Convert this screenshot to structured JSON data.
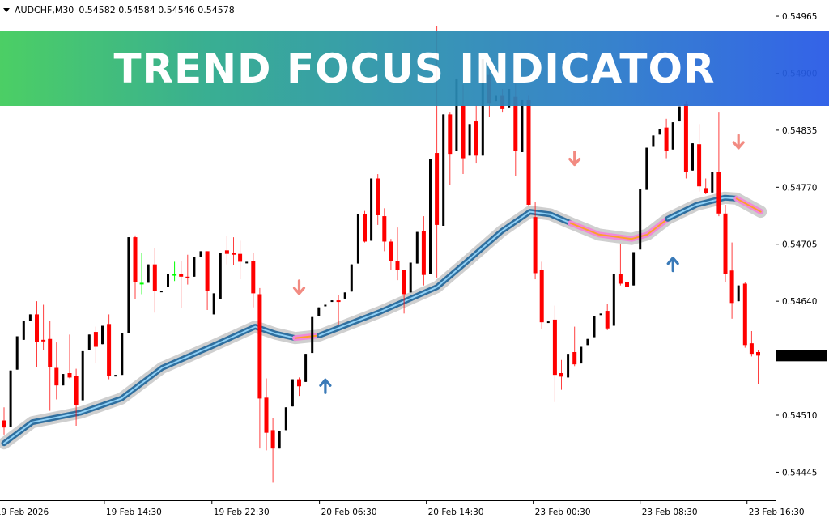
{
  "header": {
    "symbol": "AUDCHF,M30",
    "ohlc": "0.54582 0.54584 0.54546 0.54578"
  },
  "banner": {
    "title": "TREND FOCUS INDICATOR"
  },
  "chart_data": {
    "type": "candlestick",
    "title": "",
    "grid": false,
    "colors": {
      "bull": "#000000",
      "bear": "#ff0000",
      "doji": "#00ff00",
      "ma_up": "#3b8fd0",
      "ma_down": "#f08ad8",
      "ma_down_core": "#ffa500",
      "ma_halo": "#cfcfcf",
      "arrow_up": "#3a7ab8",
      "arrow_down": "#f28b82",
      "badge_bg": "#000000"
    },
    "y_ticks": [
      "0.54965",
      "0.54900",
      "0.54835",
      "0.54770",
      "0.54705",
      "0.54640",
      "0.54510",
      "0.54445"
    ],
    "ylim": [
      0.54425,
      0.54985
    ],
    "current_price": "0.54578",
    "x_ticks": [
      {
        "bar": -1.5,
        "label": "19 Feb 2026"
      },
      {
        "bar": 15.3,
        "label": "19 Feb 14:30"
      },
      {
        "bar": 31.7,
        "label": "19 Feb 22:30"
      },
      {
        "bar": 48.1,
        "label": "20 Feb 06:30"
      },
      {
        "bar": 64.4,
        "label": "20 Feb 14:30"
      },
      {
        "bar": 80.7,
        "label": "23 Feb 00:30"
      },
      {
        "bar": 97.0,
        "label": "23 Feb 08:30"
      },
      {
        "bar": 113.3,
        "label": "23 Feb 16:30"
      }
    ],
    "candles": [
      [
        0.54504,
        0.54519,
        0.54488,
        0.54496
      ],
      [
        0.54497,
        0.54561,
        0.54497,
        0.54561
      ],
      [
        0.54562,
        0.546,
        0.54562,
        0.546
      ],
      [
        0.54596,
        0.54618,
        0.54596,
        0.54618
      ],
      [
        0.54618,
        0.54625,
        0.54618,
        0.54625
      ],
      [
        0.54625,
        0.5464,
        0.54565,
        0.54594
      ],
      [
        0.54596,
        0.54636,
        0.54584,
        0.54595
      ],
      [
        0.54597,
        0.54618,
        0.54515,
        0.54565
      ],
      [
        0.54564,
        0.54593,
        0.54528,
        0.54544
      ],
      [
        0.54544,
        0.54557,
        0.54544,
        0.54557
      ],
      [
        0.54558,
        0.54602,
        0.54552,
        0.54553
      ],
      [
        0.54555,
        0.54563,
        0.54498,
        0.54522
      ],
      [
        0.54527,
        0.54583,
        0.54527,
        0.54583
      ],
      [
        0.54584,
        0.54602,
        0.54584,
        0.54602
      ],
      [
        0.54605,
        0.54611,
        0.5457,
        0.54588
      ],
      [
        0.54591,
        0.54612,
        0.54591,
        0.54612
      ],
      [
        0.54614,
        0.54625,
        0.54551,
        0.54555
      ],
      [
        0.54555,
        0.54556,
        0.54555,
        0.54556
      ],
      [
        0.54556,
        0.54604,
        0.54556,
        0.54604
      ],
      [
        0.54604,
        0.54713,
        0.54604,
        0.54713
      ],
      [
        0.54713,
        0.54715,
        0.54642,
        0.54662
      ],
      [
        0.54661,
        0.54695,
        0.54648,
        0.54661
      ],
      [
        0.54661,
        0.54682,
        0.54661,
        0.54682
      ],
      [
        0.54682,
        0.54701,
        0.54627,
        0.54652
      ],
      [
        0.54652,
        0.54652,
        0.54652,
        0.54652
      ],
      [
        0.54656,
        0.54671,
        0.54656,
        0.54671
      ],
      [
        0.54671,
        0.54685,
        0.54663,
        0.54671
      ],
      [
        0.54671,
        0.54686,
        0.54632,
        0.54668
      ],
      [
        0.54668,
        0.54693,
        0.54659,
        0.54667
      ],
      [
        0.54668,
        0.5469,
        0.54668,
        0.5469
      ],
      [
        0.5469,
        0.54697,
        0.5469,
        0.54697
      ],
      [
        0.54697,
        0.54697,
        0.5463,
        0.54652
      ],
      [
        0.54625,
        0.54649,
        0.54625,
        0.54649
      ],
      [
        0.54642,
        0.54695,
        0.54642,
        0.54695
      ],
      [
        0.54698,
        0.54714,
        0.54682,
        0.54694
      ],
      [
        0.54695,
        0.54713,
        0.54681,
        0.54693
      ],
      [
        0.54694,
        0.54709,
        0.54665,
        0.54685
      ],
      [
        0.54685,
        0.54685,
        0.54685,
        0.54685
      ],
      [
        0.54686,
        0.54695,
        0.54633,
        0.54649
      ],
      [
        0.54648,
        0.54655,
        0.54472,
        0.54529
      ],
      [
        0.5453,
        0.54552,
        0.5447,
        0.5449
      ],
      [
        0.54493,
        0.54507,
        0.54433,
        0.54472
      ],
      [
        0.54472,
        0.54492,
        0.54472,
        0.54492
      ],
      [
        0.54493,
        0.54519,
        0.54493,
        0.54519
      ],
      [
        0.5452,
        0.54551,
        0.5452,
        0.54551
      ],
      [
        0.54551,
        0.54553,
        0.54532,
        0.54543
      ],
      [
        0.54548,
        0.5458,
        0.54548,
        0.5458
      ],
      [
        0.54581,
        0.54622,
        0.54581,
        0.54622
      ],
      [
        0.54623,
        0.54633,
        0.54623,
        0.54633
      ],
      [
        0.54636,
        0.54636,
        0.54636,
        0.54636
      ],
      [
        0.54641,
        0.54641,
        0.54641,
        0.54641
      ],
      [
        0.54641,
        0.54647,
        0.54613,
        0.5464
      ],
      [
        0.54643,
        0.5465,
        0.54643,
        0.5465
      ],
      [
        0.54651,
        0.54682,
        0.54651,
        0.54682
      ],
      [
        0.54683,
        0.54739,
        0.54683,
        0.54739
      ],
      [
        0.54739,
        0.54743,
        0.54707,
        0.54708
      ],
      [
        0.54709,
        0.5478,
        0.54709,
        0.5478
      ],
      [
        0.5478,
        0.54785,
        0.54727,
        0.54738
      ],
      [
        0.54737,
        0.54746,
        0.54697,
        0.54708
      ],
      [
        0.54708,
        0.54711,
        0.54676,
        0.54686
      ],
      [
        0.54686,
        0.54724,
        0.54664,
        0.54676
      ],
      [
        0.54676,
        0.54676,
        0.54626,
        0.54648
      ],
      [
        0.5465,
        0.54684,
        0.5465,
        0.54684
      ],
      [
        0.54683,
        0.54719,
        0.54683,
        0.54719
      ],
      [
        0.5472,
        0.54737,
        0.54658,
        0.5467
      ],
      [
        0.54671,
        0.54802,
        0.54671,
        0.54802
      ],
      [
        0.54809,
        0.54954,
        0.54667,
        0.54727
      ],
      [
        0.54726,
        0.54853,
        0.54726,
        0.54853
      ],
      [
        0.54853,
        0.54856,
        0.54773,
        0.54808
      ],
      [
        0.54811,
        0.54894,
        0.54811,
        0.54894
      ],
      [
        0.54863,
        0.54887,
        0.54785,
        0.54803
      ],
      [
        0.54806,
        0.54842,
        0.54806,
        0.54842
      ],
      [
        0.54845,
        0.54863,
        0.54797,
        0.54806
      ],
      [
        0.54806,
        0.54916,
        0.54806,
        0.54916
      ],
      [
        0.54898,
        0.54905,
        0.5485,
        0.54866
      ],
      [
        0.54868,
        0.54875,
        0.54868,
        0.54875
      ],
      [
        0.54875,
        0.54882,
        0.54856,
        0.54859
      ],
      [
        0.54861,
        0.54882,
        0.54861,
        0.54882
      ],
      [
        0.54873,
        0.54888,
        0.54783,
        0.54811
      ],
      [
        0.5481,
        0.5487,
        0.5481,
        0.5487
      ],
      [
        0.5487,
        0.54875,
        0.54748,
        0.5475
      ],
      [
        0.54736,
        0.54753,
        0.54665,
        0.54672
      ],
      [
        0.54676,
        0.54685,
        0.54608,
        0.54616
      ],
      [
        0.54617,
        0.54617,
        0.54617,
        0.54617
      ],
      [
        0.54619,
        0.54635,
        0.54525,
        0.54556
      ],
      [
        0.54558,
        0.54573,
        0.54539,
        0.54554
      ],
      [
        0.54553,
        0.5458,
        0.54553,
        0.5458
      ],
      [
        0.54582,
        0.54611,
        0.54566,
        0.54568
      ],
      [
        0.54569,
        0.54588,
        0.54569,
        0.54588
      ],
      [
        0.5459,
        0.54597,
        0.5459,
        0.54597
      ],
      [
        0.54599,
        0.54623,
        0.54599,
        0.54623
      ],
      [
        0.54626,
        0.54626,
        0.54626,
        0.54626
      ],
      [
        0.54629,
        0.54637,
        0.54607,
        0.54609
      ],
      [
        0.54612,
        0.54671,
        0.54612,
        0.54671
      ],
      [
        0.54671,
        0.54705,
        0.54658,
        0.5466
      ],
      [
        0.54662,
        0.54674,
        0.54636,
        0.54656
      ],
      [
        0.54658,
        0.54696,
        0.54658,
        0.54696
      ],
      [
        0.54699,
        0.54768,
        0.54699,
        0.54768
      ],
      [
        0.54767,
        0.54815,
        0.54767,
        0.54815
      ],
      [
        0.54816,
        0.54829,
        0.54816,
        0.54829
      ],
      [
        0.5483,
        0.54836,
        0.5483,
        0.54836
      ],
      [
        0.54838,
        0.54848,
        0.54803,
        0.54811
      ],
      [
        0.54813,
        0.54844,
        0.54813,
        0.54844
      ],
      [
        0.54845,
        0.54862,
        0.54845,
        0.54862
      ],
      [
        0.54865,
        0.54868,
        0.5478,
        0.54787
      ],
      [
        0.54789,
        0.5482,
        0.54789,
        0.5482
      ],
      [
        0.54819,
        0.54842,
        0.54765,
        0.54771
      ],
      [
        0.54769,
        0.5478,
        0.54762,
        0.54763
      ],
      [
        0.54764,
        0.54787,
        0.54764,
        0.54787
      ],
      [
        0.54787,
        0.54856,
        0.54737,
        0.5474
      ],
      [
        0.5474,
        0.5475,
        0.54662,
        0.54671
      ],
      [
        0.54675,
        0.54707,
        0.5462,
        0.54638
      ],
      [
        0.5464,
        0.54658,
        0.5464,
        0.54658
      ],
      [
        0.5466,
        0.54662,
        0.54587,
        0.5459
      ],
      [
        0.54592,
        0.54606,
        0.54577,
        0.5458
      ],
      [
        0.54582,
        0.54584,
        0.54546,
        0.54578
      ]
    ],
    "ma_line": [
      [
        0,
        0.54478,
        "up"
      ],
      [
        4.3,
        0.54502,
        "up"
      ],
      [
        11.7,
        0.54513,
        "up"
      ],
      [
        17.9,
        0.54529,
        "up"
      ],
      [
        24.1,
        0.54564,
        "up"
      ],
      [
        31.5,
        0.54588,
        "up"
      ],
      [
        38.3,
        0.54611,
        "up"
      ],
      [
        41.4,
        0.54603,
        "up"
      ],
      [
        44.4,
        0.54598,
        "down"
      ],
      [
        48.1,
        0.54601,
        "up"
      ],
      [
        51.2,
        0.5461,
        "up"
      ],
      [
        57.4,
        0.54628,
        "up"
      ],
      [
        62.3,
        0.54644,
        "up"
      ],
      [
        66,
        0.54656,
        "up"
      ],
      [
        71,
        0.54688,
        "up"
      ],
      [
        75.9,
        0.5472,
        "up"
      ],
      [
        80.2,
        0.54742,
        "up"
      ],
      [
        83.3,
        0.54739,
        "up"
      ],
      [
        86.4,
        0.54729,
        "down"
      ],
      [
        90.7,
        0.54716,
        "down"
      ],
      [
        95.7,
        0.54711,
        "down"
      ],
      [
        98.1,
        0.54716,
        "down"
      ],
      [
        101.2,
        0.54734,
        "up"
      ],
      [
        105.6,
        0.5475,
        "up"
      ],
      [
        109.9,
        0.54758,
        "up"
      ],
      [
        111.7,
        0.54757,
        "down"
      ],
      [
        115.4,
        0.54742,
        "down"
      ]
    ],
    "arrows": [
      {
        "bar": 45,
        "price": 0.54656,
        "dir": "down"
      },
      {
        "bar": 49,
        "price": 0.54543,
        "dir": "up"
      },
      {
        "bar": 87,
        "price": 0.54803,
        "dir": "down"
      },
      {
        "bar": 102,
        "price": 0.54682,
        "dir": "up"
      },
      {
        "bar": 112,
        "price": 0.54822,
        "dir": "down"
      }
    ]
  }
}
